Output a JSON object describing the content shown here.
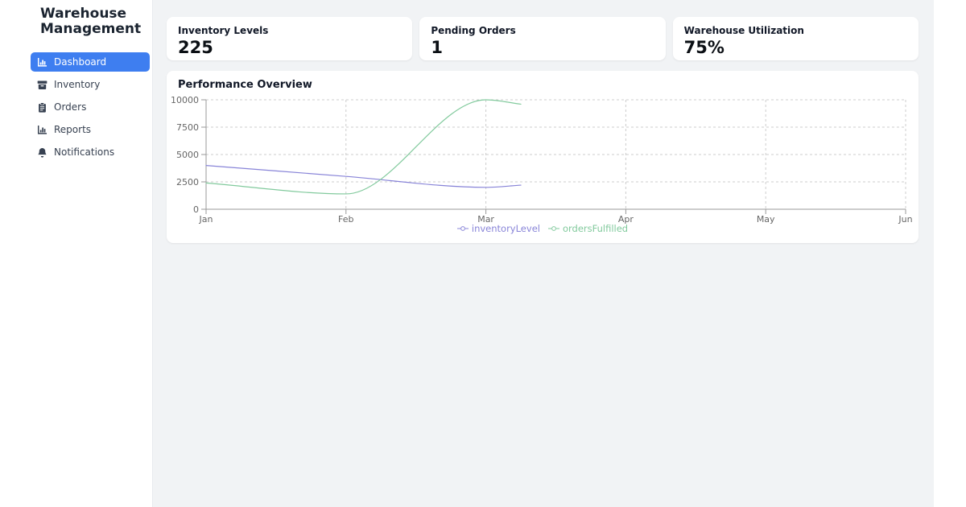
{
  "sidebar": {
    "title": "Warehouse Management",
    "active_bg": "#3e7ef0",
    "items": [
      {
        "label": "Dashboard",
        "icon": "chart-bar-icon",
        "active": true
      },
      {
        "label": "Inventory",
        "icon": "archive-box-icon",
        "active": false
      },
      {
        "label": "Orders",
        "icon": "clipboard-icon",
        "active": false
      },
      {
        "label": "Reports",
        "icon": "chart-bar-icon",
        "active": false
      },
      {
        "label": "Notifications",
        "icon": "bell-icon",
        "active": false
      }
    ]
  },
  "stats": [
    {
      "title": "Inventory Levels",
      "value": "225"
    },
    {
      "title": "Pending Orders",
      "value": "1"
    },
    {
      "title": "Warehouse Utilization",
      "value": "75%"
    }
  ],
  "chart_data": {
    "type": "line",
    "title": "Performance Overview",
    "x_axis": {
      "ticks": [
        "Jan",
        "Feb",
        "Mar",
        "Apr",
        "May",
        "Jun"
      ],
      "type": "time-months"
    },
    "y_axis": {
      "ticks": [
        0,
        2500,
        5000,
        7500,
        10000
      ],
      "range": [
        0,
        10000
      ]
    },
    "grid": "dashed",
    "legend_position": "bottom",
    "axis_color": "#999999",
    "grid_color": "#cccccc",
    "tick_text_color": "#666666",
    "series": [
      {
        "name": "inventoryLevel",
        "color": "#8884d8",
        "points": [
          {
            "x": 0,
            "month": "Jan",
            "value": 4000
          },
          {
            "x": 1,
            "month": "Feb",
            "value": 3000
          },
          {
            "x": 2,
            "month": "Mar",
            "value": 2000
          },
          {
            "x": 2.25,
            "month": "Mar (data end)",
            "value": 2200
          }
        ]
      },
      {
        "name": "ordersFulfilled",
        "color": "#82ca9d",
        "points": [
          {
            "x": 0,
            "month": "Jan",
            "value": 2400
          },
          {
            "x": 1,
            "month": "Feb",
            "value": 1400
          },
          {
            "x": 2,
            "month": "Mar",
            "value": 10000
          },
          {
            "x": 2.25,
            "month": "Mar (data end)",
            "value": 9600
          }
        ]
      }
    ]
  }
}
